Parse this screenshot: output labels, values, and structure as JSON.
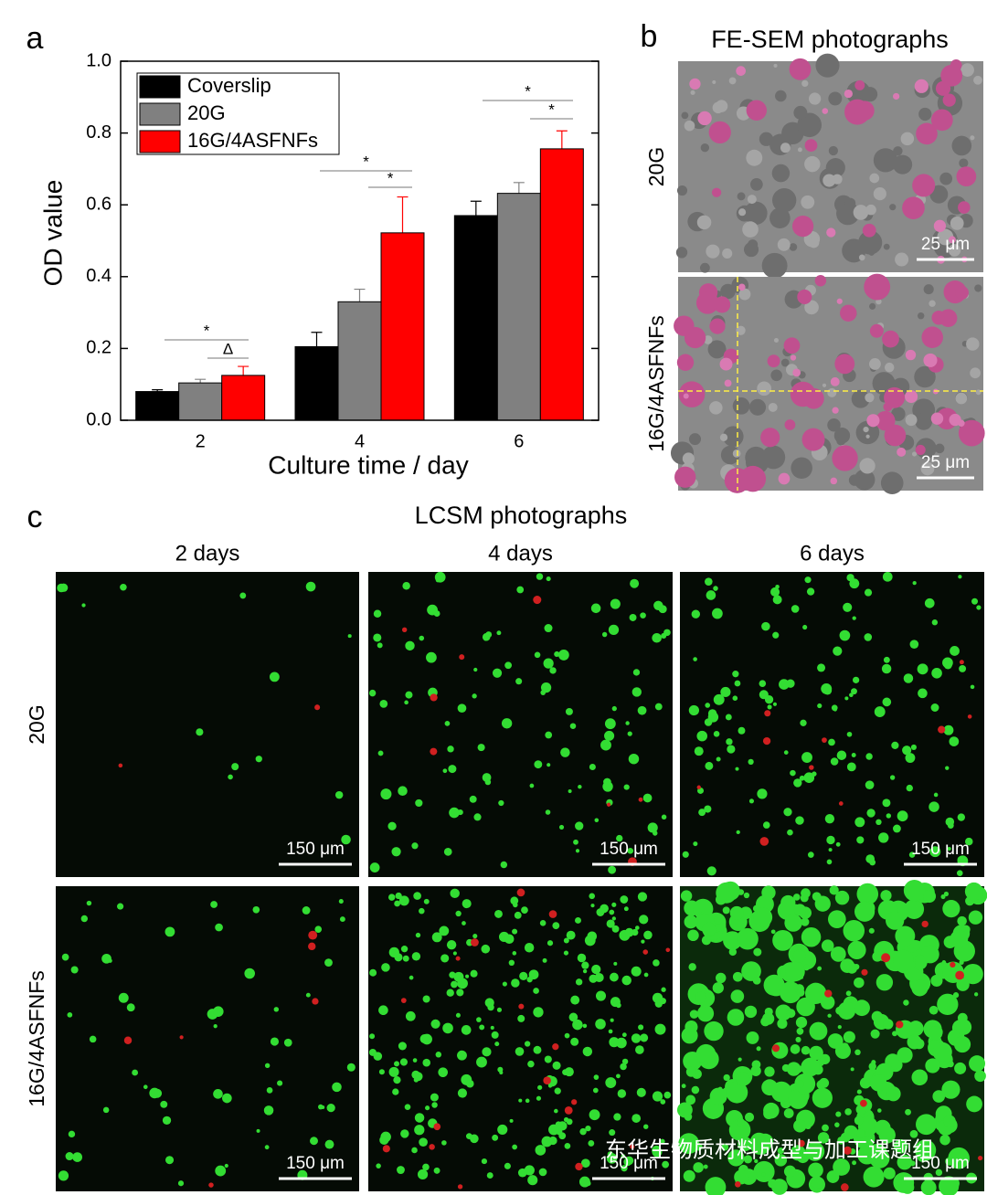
{
  "chart_data": {
    "type": "bar",
    "panel_label": "a",
    "x_label": "Culture time / day",
    "y_label": "OD value",
    "categories": [
      "2",
      "4",
      "6"
    ],
    "series": [
      {
        "name": "Coverslip",
        "color": "#000000",
        "values": [
          0.08,
          0.205,
          0.57
        ],
        "errors": [
          0.005,
          0.04,
          0.04
        ]
      },
      {
        "name": "20G",
        "color": "#808080",
        "values": [
          0.104,
          0.33,
          0.632
        ],
        "errors": [
          0.01,
          0.035,
          0.03
        ]
      },
      {
        "name": "16G/4ASFNFs",
        "color": "#ff0000",
        "values": [
          0.125,
          0.522,
          0.756
        ],
        "errors": [
          0.025,
          0.1,
          0.05
        ]
      }
    ],
    "ylim": [
      0,
      1
    ],
    "yticks": [
      {
        "value": 0,
        "label": "0.0"
      },
      0.2,
      0.4,
      0.6,
      0.8,
      {
        "value": 1,
        "label": "1.0"
      }
    ],
    "legend": "upper left",
    "annotations": [
      "*",
      "Δ",
      "*",
      "*",
      "*",
      "*"
    ]
  },
  "sem": {
    "panel_label": "b",
    "title": "FE-SEM photographs",
    "rows": [
      "20G",
      "16G/4ASFNFs"
    ],
    "scale_bar": "25 μm"
  },
  "lcsm": {
    "panel_label": "c",
    "title": "LCSM photographs",
    "columns": [
      "2 days",
      "4 days",
      "6 days"
    ],
    "rows": [
      "20G",
      "16G/4ASFNFs"
    ],
    "scale_bar": "150 μm"
  },
  "watermark": "东华生物质材料成型与加工课题组"
}
